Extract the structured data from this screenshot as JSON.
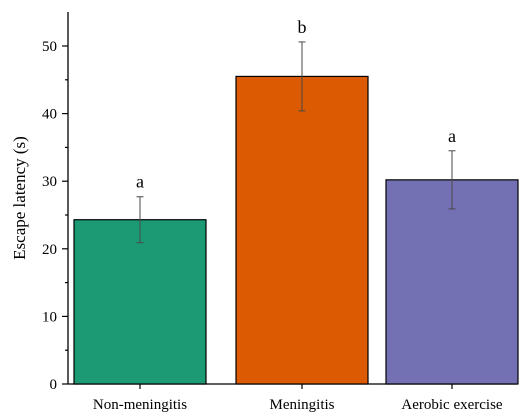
{
  "chart_data": {
    "type": "bar",
    "categories": [
      "Non-meningitis",
      "Meningitis",
      "Aerobic exercise"
    ],
    "values": [
      24.3,
      45.5,
      30.2
    ],
    "errors": [
      3.4,
      5.1,
      4.3
    ],
    "significance": [
      "a",
      "b",
      "a"
    ],
    "colors": [
      "#1b9a73",
      "#dc5a02",
      "#7371b3"
    ],
    "ylabel": "Escape latency (s)",
    "xlabel": "",
    "ylim": [
      0,
      55
    ],
    "yticks": [
      0,
      10,
      20,
      30,
      40,
      50
    ],
    "grid": false
  }
}
